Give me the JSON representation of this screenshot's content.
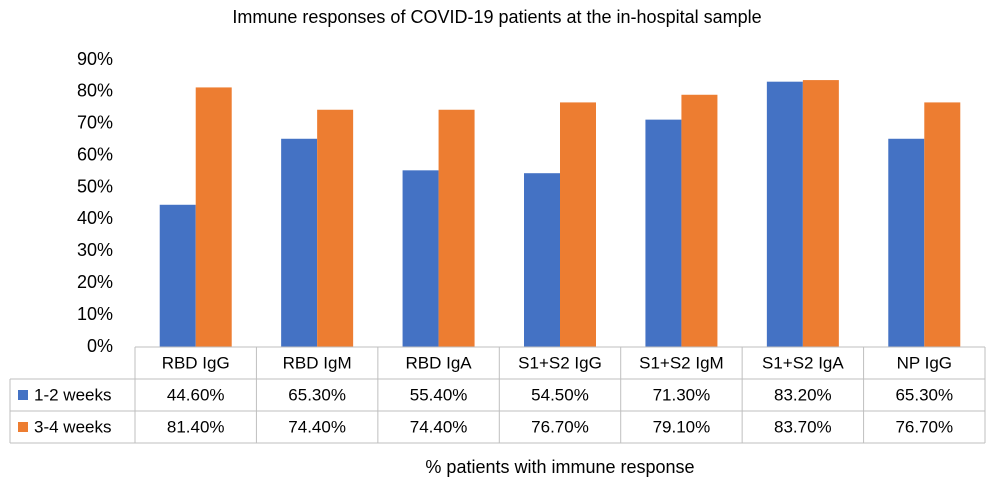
{
  "chart_data": {
    "type": "bar",
    "title": "Immune responses of COVID-19 patients at the in-hospital sample",
    "x_label": "% patients with immune response",
    "categories": [
      "RBD IgG",
      "RBD IgM",
      "RBD IgA",
      "S1+S2 IgG",
      "S1+S2 IgM",
      "S1+S2 IgA",
      "NP IgG"
    ],
    "series": [
      {
        "name": "1-2 weeks",
        "color": "#4472c4",
        "values": [
          44.6,
          65.3,
          55.4,
          54.5,
          71.3,
          83.2,
          65.3
        ],
        "value_labels": [
          "44.60%",
          "65.30%",
          "55.40%",
          "54.50%",
          "71.30%",
          "83.20%",
          "65.30%"
        ]
      },
      {
        "name": "3-4 weeks",
        "color": "#ed7d31",
        "values": [
          81.4,
          74.4,
          74.4,
          76.7,
          79.1,
          83.7,
          76.7
        ],
        "value_labels": [
          "81.40%",
          "74.40%",
          "74.40%",
          "76.70%",
          "79.10%",
          "83.70%",
          "76.70%"
        ]
      }
    ],
    "ylim": [
      0,
      90
    ],
    "yticks": [
      {
        "value": 0,
        "label": "0%"
      },
      {
        "value": 10,
        "label": "10%"
      },
      {
        "value": 20,
        "label": "20%"
      },
      {
        "value": 30,
        "label": "30%"
      },
      {
        "value": 40,
        "label": "40%"
      },
      {
        "value": 50,
        "label": "50%"
      },
      {
        "value": 60,
        "label": "60%"
      },
      {
        "value": 70,
        "label": "70%"
      },
      {
        "value": 80,
        "label": "80%"
      },
      {
        "value": 90,
        "label": "90%"
      }
    ],
    "grid": false,
    "legend": "table"
  }
}
